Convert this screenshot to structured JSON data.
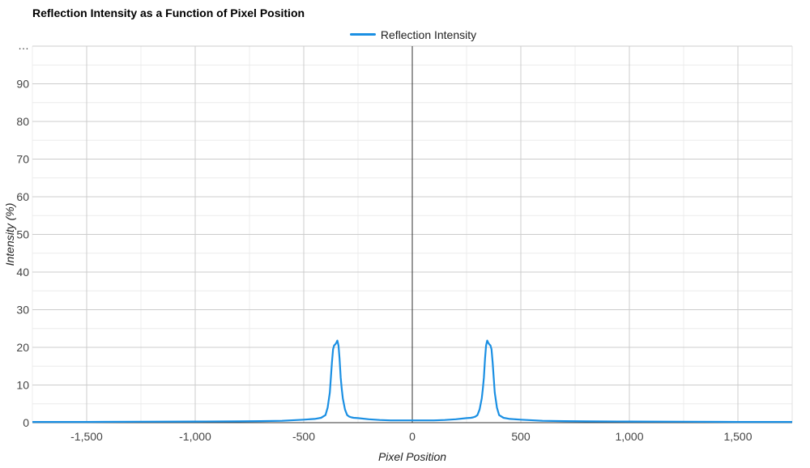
{
  "chart_data": {
    "type": "line",
    "title": "Reflection Intensity as a Function of Pixel Position",
    "xlabel": "Pixel Position",
    "ylabel": "Intensity (%)",
    "xlim": [
      -1750,
      1750
    ],
    "ylim": [
      0,
      100
    ],
    "x_ticks": [
      -1500,
      -1000,
      -500,
      0,
      500,
      1000,
      1500
    ],
    "x_tick_labels": [
      "-1,500",
      "-1,000",
      "-500",
      "0",
      "500",
      "1,000",
      "1,500"
    ],
    "y_ticks": [
      0,
      10,
      20,
      30,
      40,
      50,
      60,
      70,
      80,
      90
    ],
    "y_tick_labels": [
      "0",
      "10",
      "20",
      "30",
      "40",
      "50",
      "60",
      "70",
      "80",
      "90"
    ],
    "y_top_label": "…",
    "grid": true,
    "legend_position": "top-center",
    "series": [
      {
        "name": "Reflection Intensity",
        "color": "#1a8fe3",
        "x": [
          -1750,
          -1500,
          -1250,
          -1000,
          -800,
          -700,
          -600,
          -500,
          -450,
          -420,
          -400,
          -390,
          -380,
          -375,
          -370,
          -365,
          -360,
          -355,
          -350,
          -345,
          -340,
          -335,
          -330,
          -325,
          -320,
          -310,
          -300,
          -290,
          -280,
          -270,
          -250,
          -200,
          -150,
          -100,
          -50,
          0,
          50,
          100,
          150,
          200,
          250,
          270,
          280,
          290,
          300,
          310,
          320,
          325,
          330,
          335,
          340,
          345,
          350,
          355,
          360,
          365,
          370,
          375,
          380,
          390,
          400,
          420,
          450,
          500,
          600,
          700,
          800,
          1000,
          1250,
          1500,
          1750
        ],
        "y": [
          0.2,
          0.2,
          0.25,
          0.3,
          0.35,
          0.4,
          0.5,
          0.8,
          1.0,
          1.3,
          2.0,
          4.0,
          8.0,
          12.0,
          16.0,
          19.5,
          20.5,
          20.8,
          21.2,
          21.8,
          20.5,
          17.0,
          12.0,
          9.0,
          6.5,
          3.5,
          2.0,
          1.6,
          1.4,
          1.3,
          1.2,
          0.9,
          0.7,
          0.6,
          0.6,
          0.6,
          0.6,
          0.6,
          0.7,
          0.9,
          1.2,
          1.3,
          1.4,
          1.6,
          2.0,
          3.5,
          6.5,
          9.0,
          12.0,
          17.0,
          20.5,
          21.8,
          21.2,
          20.8,
          20.5,
          19.5,
          16.0,
          12.0,
          8.0,
          4.0,
          2.0,
          1.3,
          1.0,
          0.8,
          0.5,
          0.4,
          0.35,
          0.3,
          0.25,
          0.2,
          0.2
        ]
      }
    ]
  }
}
